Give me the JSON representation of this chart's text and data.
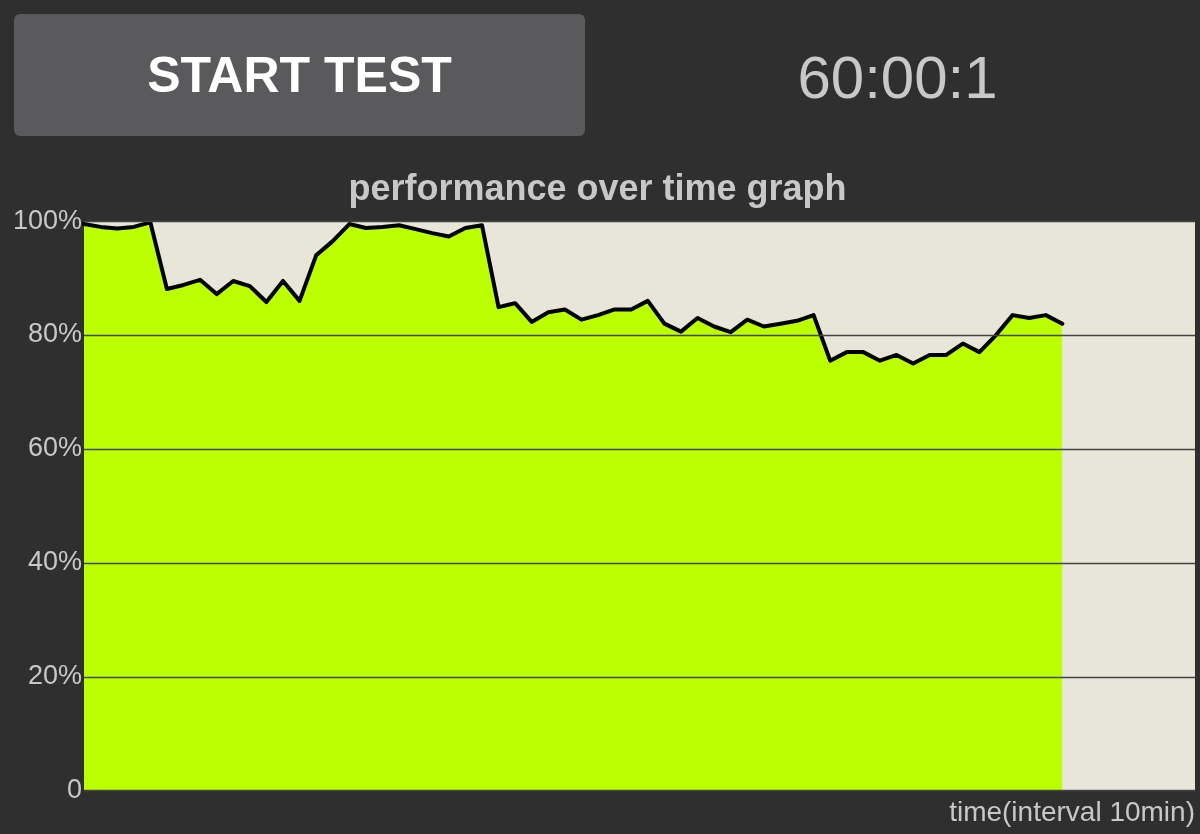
{
  "chart_data": {
    "type": "area",
    "title": "performance over time graph",
    "xlabel": "time(interval 10min)",
    "annotations": [
      "START TEST",
      "60:00:1"
    ],
    "categories": [
      null,
      null,
      null,
      null,
      null,
      null,
      null,
      null,
      null,
      null,
      null,
      null,
      null,
      null,
      null,
      null,
      null,
      null,
      null,
      null,
      null,
      null,
      null,
      null,
      null,
      null,
      null,
      null,
      null,
      null,
      null,
      null,
      null,
      null,
      null,
      null,
      null,
      null,
      null,
      null,
      null,
      null,
      null,
      null,
      null,
      null,
      null,
      null,
      null,
      null,
      null,
      null,
      null,
      null,
      null,
      null,
      null,
      null,
      null,
      null,
      null,
      null,
      null,
      null,
      null,
      null,
      null,
      null
    ],
    "series": [
      {
        "color": "#bbff00",
        "values": [
          99.5,
          99,
          98.7,
          99,
          99.8,
          88.1,
          88.8,
          89.7,
          87.2,
          89.5,
          88.6,
          85.8,
          89.5,
          86,
          94,
          96.5,
          99.5,
          98.8,
          99,
          99.3,
          98.6,
          97.9,
          97.3,
          98.8,
          99.3,
          84.9,
          85.6,
          82.3,
          84,
          84.5,
          82.7,
          83.5,
          84.5,
          84.5,
          86,
          82,
          80.6,
          83,
          81.5,
          80.5,
          82.7,
          81.5,
          82,
          82.5,
          83.5,
          75.5,
          77,
          77,
          75.5,
          76.5,
          75,
          76.5,
          76.5,
          78.5,
          77,
          80,
          83.5,
          83,
          83.5,
          82,
          null,
          null,
          null,
          null,
          null,
          null,
          null,
          null
        ]
      }
    ],
    "ylim": [
      0,
      100
    ],
    "yticks": [
      0,
      {
        "value": 20,
        "label": "20%"
      },
      {
        "value": 40,
        "label": "40%"
      },
      {
        "value": 60,
        "label": "60%"
      },
      {
        "value": 80,
        "label": "80%"
      },
      {
        "value": 100,
        "label": "100%"
      }
    ],
    "tick_labels": "y",
    "grid": "y",
    "legend": false,
    "marker": "none",
    "line_style": "solid"
  }
}
